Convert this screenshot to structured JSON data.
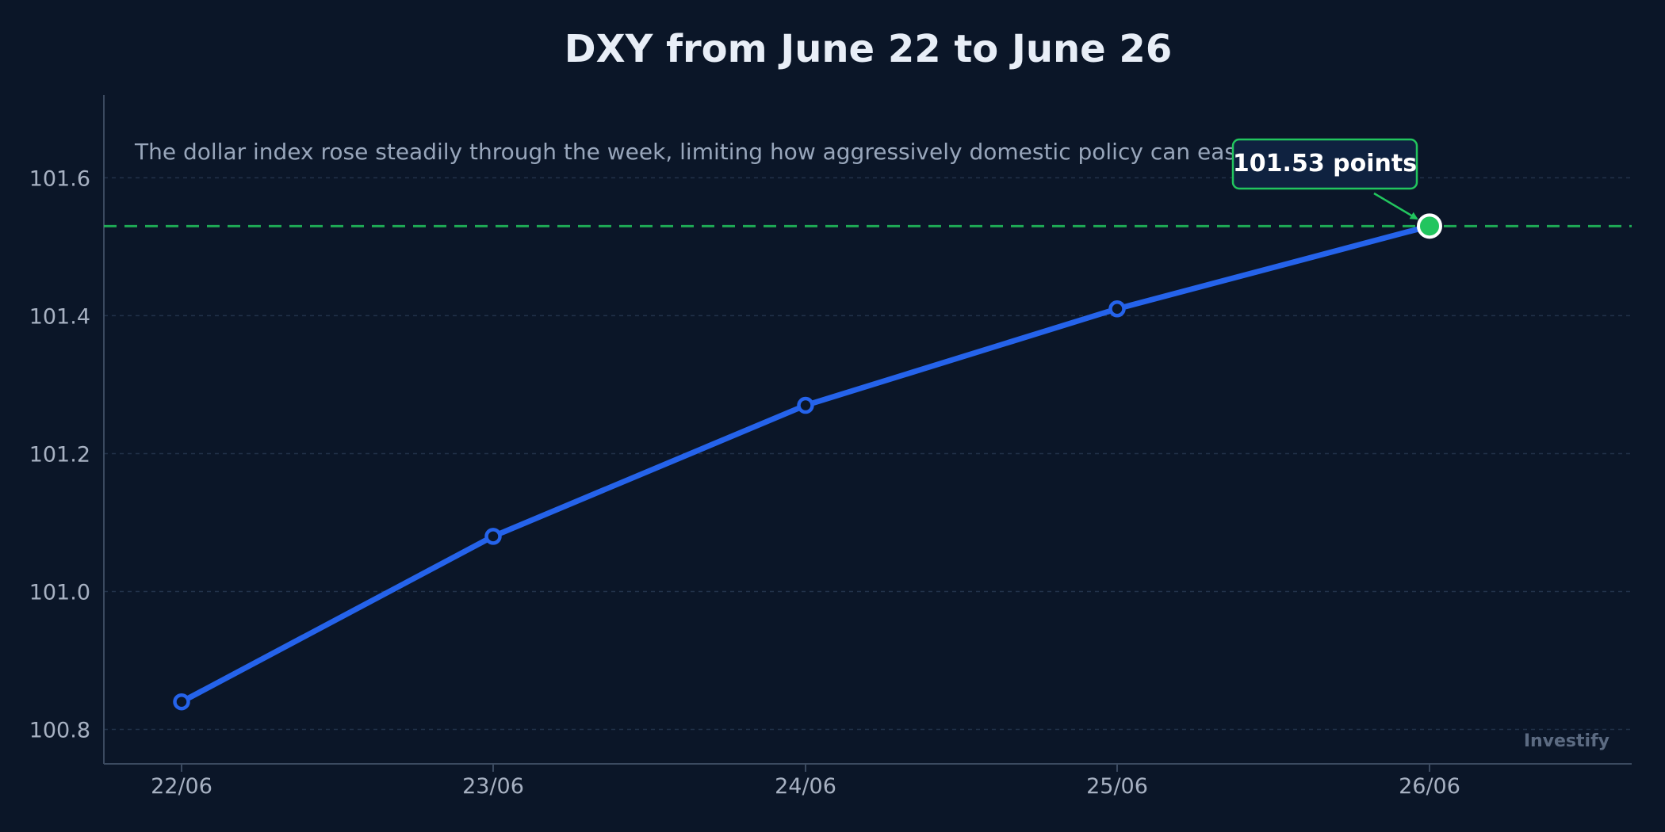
{
  "chart_data": {
    "type": "line",
    "title": "DXY from June 22 to June 26",
    "subtitle": "The dollar index rose steadily through the week, limiting how aggressively domestic policy can ease.",
    "xlabel": "",
    "ylabel": "",
    "categories": [
      "22/06",
      "23/06",
      "24/06",
      "25/06",
      "26/06"
    ],
    "series": [
      {
        "values": [
          100.84,
          101.08,
          101.27,
          101.41,
          101.53
        ]
      }
    ],
    "ylim": [
      100.75,
      101.72
    ],
    "yticks": [
      100.8,
      101.0,
      101.2,
      101.4,
      101.6
    ],
    "ytick_labels": [
      "100.8",
      "101.0",
      "101.2",
      "101.4",
      "101.6"
    ],
    "grid": true,
    "reference_line": {
      "value": 101.53,
      "style": "dashed"
    },
    "callout": {
      "label": "101.53 points",
      "category_index": 4
    },
    "watermark": "Investify",
    "colors": {
      "background": "#0b1628",
      "line": "#2563eb",
      "highlight": "#22c55e",
      "grid": "#22324a",
      "axis": "#3b4a60"
    }
  }
}
